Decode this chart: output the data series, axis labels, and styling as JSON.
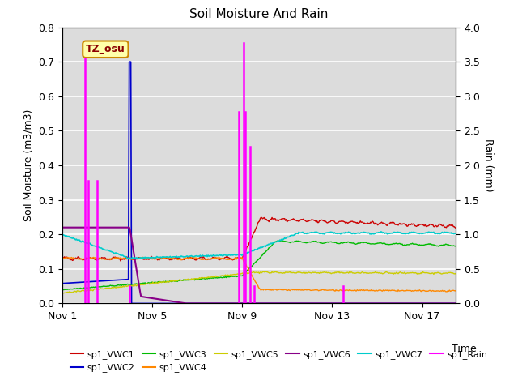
{
  "title": "Soil Moisture And Rain",
  "ylabel_left": "Soil Moisture (m3/m3)",
  "ylabel_right": "Rain (mm)",
  "xlabel": "Time",
  "ylim_left": [
    0.0,
    0.8
  ],
  "ylim_right": [
    0.0,
    4.0
  ],
  "bg_color": "#dcdcdc",
  "fig_color": "#ffffff",
  "annotation_text": "TZ_osu",
  "colors": {
    "VWC1": "#cc0000",
    "VWC2": "#0000cc",
    "VWC3": "#00bb00",
    "VWC4": "#ff8800",
    "VWC5": "#cccc00",
    "VWC6": "#880088",
    "VWC7": "#00cccc",
    "Rain": "#ff00ff"
  },
  "xtick_labels": [
    "Nov 1",
    "Nov 5",
    "Nov 9",
    "Nov 13",
    "Nov 17"
  ],
  "xtick_positions": [
    0,
    4,
    8,
    12,
    16
  ],
  "yticks_left": [
    0.0,
    0.1,
    0.2,
    0.3,
    0.4,
    0.5,
    0.6,
    0.7,
    0.8
  ],
  "yticks_right": [
    0.0,
    0.5,
    1.0,
    1.5,
    2.0,
    2.5,
    3.0,
    3.5,
    4.0
  ],
  "rain_times": [
    1.0,
    1.15,
    1.55,
    3.0,
    7.85,
    8.05,
    8.15,
    8.35,
    8.55,
    12.5
  ],
  "rain_heights": [
    0.71,
    0.355,
    0.355,
    0.05,
    0.555,
    0.755,
    0.555,
    0.455,
    0.05,
    0.05
  ],
  "xlim": [
    0,
    17.5
  ]
}
